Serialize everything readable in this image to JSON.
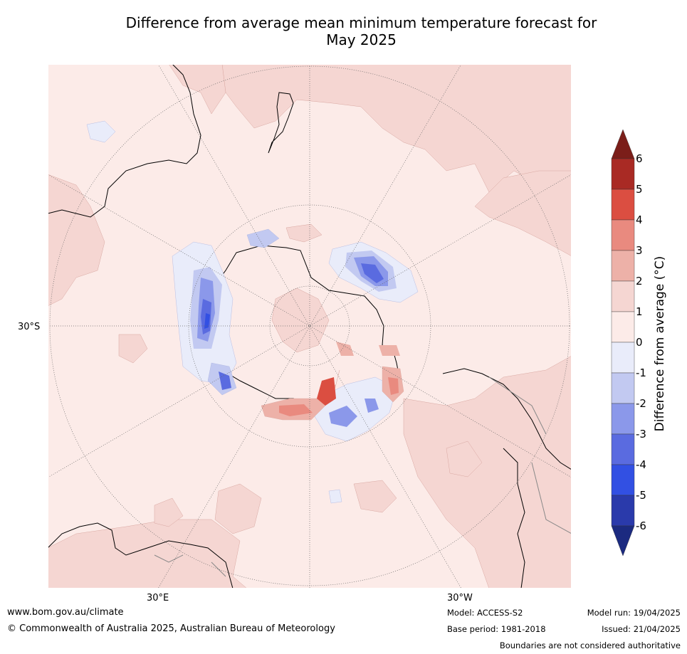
{
  "title_line1": "Difference from average mean minimum temperature forecast for",
  "title_line2": "May 2025",
  "labels": {
    "lat": "30°S",
    "lon_east": "30°E",
    "lon_west": "30°W"
  },
  "colorbar": {
    "title": "Difference from average (°C)",
    "ticks": [
      "6",
      "5",
      "4",
      "3",
      "2",
      "1",
      "0",
      "-1",
      "-2",
      "-3",
      "-4",
      "-5",
      "-6"
    ],
    "colors_top_to_bottom": [
      "#7b1e19",
      "#a92a24",
      "#db4e41",
      "#e98a7f",
      "#edb1a8",
      "#f5d6d2",
      "#fcebe8",
      "#e9ecfa",
      "#c2c9f1",
      "#8b98ea",
      "#5a6be0",
      "#3250e3",
      "#2a3aab",
      "#1b2a80"
    ]
  },
  "footer": {
    "website": "www.bom.gov.au/climate",
    "copyright": "© Commonwealth of Australia 2025, Australian Bureau of Meteorology",
    "model": "Model: ACCESS-S2",
    "base_period": "Base period: 1981-2018",
    "model_run": "Model run: 19/04/2025",
    "issued": "Issued: 21/04/2025",
    "disclaimer": "Boundaries are not considered authoritative"
  }
}
